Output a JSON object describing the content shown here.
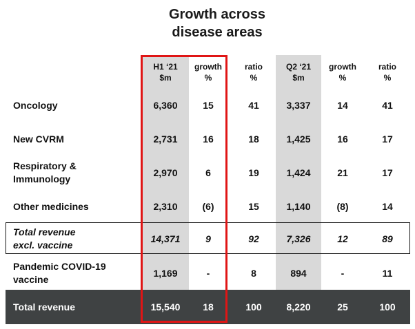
{
  "title": "Growth across disease areas",
  "title_line1": "Growth across",
  "title_line2": "disease areas",
  "columns": [
    {
      "line1": "H1 ‘21",
      "line2": "$m"
    },
    {
      "line1": "growth",
      "line2": "%"
    },
    {
      "line1": "ratio",
      "line2": "%"
    },
    {
      "line1": "Q2 ‘21",
      "line2": "$m"
    },
    {
      "line1": "growth",
      "line2": "%"
    },
    {
      "line1": "ratio",
      "line2": "%"
    }
  ],
  "rows": [
    {
      "label1": "Oncology",
      "label2": "",
      "values": [
        "6,360",
        "15",
        "41",
        "3,337",
        "14",
        "41"
      ]
    },
    {
      "label1": "New CVRM",
      "label2": "",
      "values": [
        "2,731",
        "16",
        "18",
        "1,425",
        "16",
        "17"
      ]
    },
    {
      "label1": "Respiratory &",
      "label2": "Immunology",
      "values": [
        "2,970",
        "6",
        "19",
        "1,424",
        "21",
        "17"
      ]
    },
    {
      "label1": "Other medicines",
      "label2": "",
      "values": [
        "2,310",
        "(6)",
        "15",
        "1,140",
        "(8)",
        "14"
      ]
    },
    {
      "label1": "Total revenue",
      "label2": "excl. vaccine",
      "values": [
        "14,371",
        "9",
        "92",
        "7,326",
        "12",
        "89"
      ]
    },
    {
      "label1": "Pandemic COVID-19",
      "label2": "vaccine",
      "values": [
        "1,169",
        "-",
        "8",
        "894",
        "-",
        "11"
      ]
    },
    {
      "label1": "Total revenue",
      "label2": "",
      "values": [
        "15,540",
        "18",
        "100",
        "8,220",
        "25",
        "100"
      ]
    }
  ],
  "colors": {
    "highlight": "#e01515",
    "shade": "#d9d9d9",
    "total_bg": "#3f4243"
  }
}
